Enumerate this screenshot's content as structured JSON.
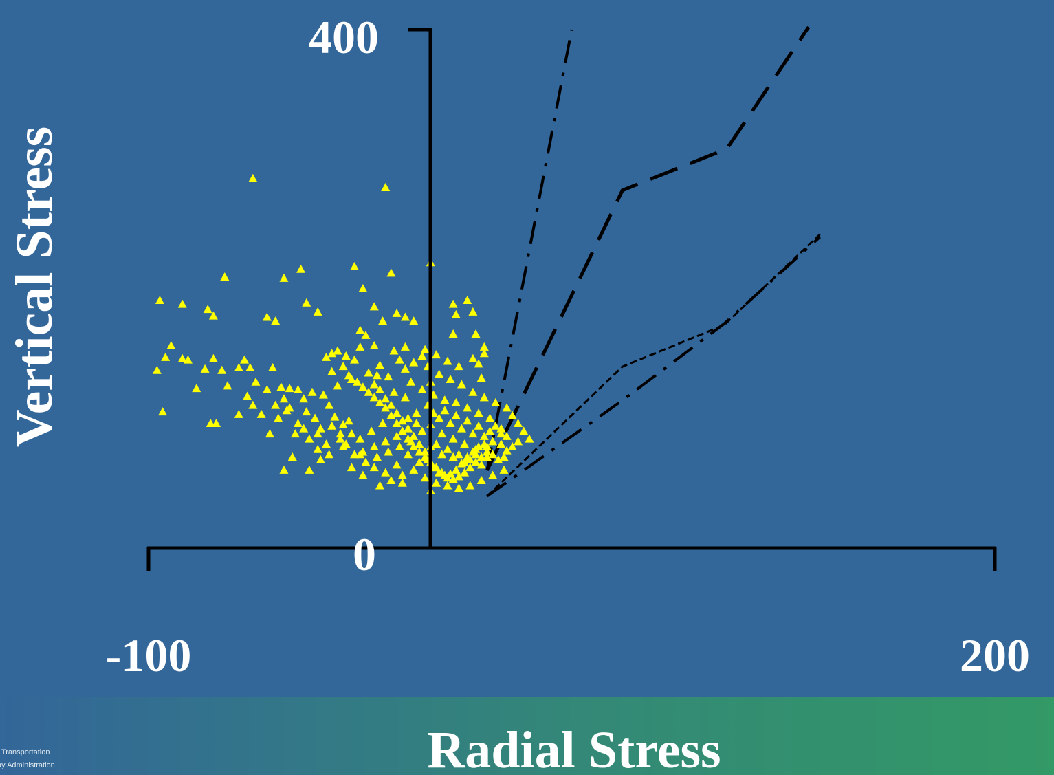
{
  "chart_data": {
    "type": "scatter",
    "xlabel": "Radial Stress",
    "ylabel": "Vertical Stress",
    "xlim": [
      -100,
      200
    ],
    "ylim": [
      0,
      400
    ],
    "x_tick_labels": [
      "-100",
      "200"
    ],
    "y_tick_labels": [
      "0",
      "400"
    ],
    "grid": false,
    "legend": "none",
    "marker": "triangle",
    "colors": {
      "background": "#336699",
      "points": "#ffff00",
      "lines": "#000000",
      "text": "#ffffff"
    },
    "series": [
      {
        "type": "line",
        "style": "dash-dot",
        "x": [
          20,
          50
        ],
        "y": [
          60,
          400
        ]
      },
      {
        "type": "line",
        "style": "long-dash",
        "x": [
          20,
          68,
          105,
          134
        ],
        "y": [
          60,
          276,
          308,
          402
        ]
      },
      {
        "type": "line",
        "style": "dash-dot",
        "x": [
          20,
          68,
          104,
          138
        ],
        "y": [
          40,
          114,
          173,
          240
        ]
      },
      {
        "type": "line",
        "style": "short-dash",
        "x": [
          20,
          68,
          104,
          138
        ],
        "y": [
          40,
          140,
          172,
          242
        ]
      },
      {
        "type": "scatter",
        "style": "triangle-markers",
        "points": [
          [
            -63,
            285
          ],
          [
            -16,
            278
          ],
          [
            -46,
            215
          ],
          [
            -73,
            209
          ],
          [
            -52,
            208
          ],
          [
            -27,
            217
          ],
          [
            -24,
            200
          ],
          [
            -14,
            212
          ],
          [
            0,
            220
          ],
          [
            -96,
            191
          ],
          [
            -88,
            188
          ],
          [
            -79,
            184
          ],
          [
            -77,
            179
          ],
          [
            -58,
            178
          ],
          [
            -55,
            175
          ],
          [
            -44,
            189
          ],
          [
            -40,
            182
          ],
          [
            -20,
            186
          ],
          [
            -12,
            181
          ],
          [
            -25,
            168
          ],
          [
            -17,
            175
          ],
          [
            -9,
            178
          ],
          [
            -6,
            175
          ],
          [
            8,
            188
          ],
          [
            9,
            180
          ],
          [
            15,
            182
          ],
          [
            8,
            165
          ],
          [
            13,
            191
          ],
          [
            16,
            165
          ],
          [
            19,
            155
          ],
          [
            -97,
            137
          ],
          [
            -95,
            105
          ],
          [
            -94,
            147
          ],
          [
            -92,
            156
          ],
          [
            -88,
            146
          ],
          [
            -86,
            145
          ],
          [
            -83,
            123
          ],
          [
            -80,
            138
          ],
          [
            -77,
            146
          ],
          [
            -74,
            137
          ],
          [
            -72,
            125
          ],
          [
            -68,
            139
          ],
          [
            -66,
            145
          ],
          [
            -64,
            139
          ],
          [
            -56,
            139
          ],
          [
            -53,
            124
          ],
          [
            -50,
            123
          ],
          [
            -37,
            147
          ],
          [
            -35,
            150
          ],
          [
            -33,
            152
          ],
          [
            -30,
            148
          ],
          [
            -29,
            133
          ],
          [
            -27,
            145
          ],
          [
            -25,
            155
          ],
          [
            -23,
            164
          ],
          [
            -20,
            156
          ],
          [
            -18,
            141
          ],
          [
            -13,
            152
          ],
          [
            -11,
            145
          ],
          [
            -9,
            155
          ],
          [
            -6,
            143
          ],
          [
            -3,
            148
          ],
          [
            -2,
            153
          ],
          [
            0,
            128
          ],
          [
            2,
            149
          ],
          [
            6,
            144
          ],
          [
            10,
            140
          ],
          [
            15,
            146
          ],
          [
            17,
            142
          ],
          [
            18,
            131
          ],
          [
            19,
            150
          ],
          [
            -54,
            100
          ],
          [
            -68,
            103
          ],
          [
            -76,
            96
          ],
          [
            -78,
            96
          ],
          [
            -57,
            88
          ],
          [
            -60,
            103
          ],
          [
            -65,
            117
          ],
          [
            -63,
            110
          ],
          [
            -44,
            105
          ],
          [
            -40,
            88
          ],
          [
            -42,
            120
          ],
          [
            -48,
            88
          ],
          [
            -50,
            108
          ],
          [
            -55,
            110
          ],
          [
            -52,
            115
          ],
          [
            -47,
            122
          ],
          [
            -45,
            115
          ],
          [
            -38,
            118
          ],
          [
            -36,
            110
          ],
          [
            -34,
            101
          ],
          [
            -31,
            95
          ],
          [
            -32,
            88
          ],
          [
            -30,
            80
          ],
          [
            -25,
            72
          ],
          [
            -33,
            125
          ],
          [
            -28,
            130
          ],
          [
            -22,
            135
          ],
          [
            -20,
            126
          ],
          [
            -18,
            122
          ],
          [
            -16,
            115
          ],
          [
            -14,
            110
          ],
          [
            -12,
            104
          ],
          [
            -10,
            98
          ],
          [
            -8,
            92
          ],
          [
            -6,
            86
          ],
          [
            -4,
            80
          ],
          [
            -2,
            74
          ],
          [
            -1,
            68
          ],
          [
            1,
            62
          ],
          [
            3,
            58
          ],
          [
            5,
            56
          ],
          [
            7,
            57
          ],
          [
            9,
            60
          ],
          [
            11,
            65
          ],
          [
            13,
            70
          ],
          [
            15,
            74
          ],
          [
            17,
            78
          ],
          [
            19,
            80
          ],
          [
            22,
            82
          ],
          [
            25,
            80
          ],
          [
            27,
            75
          ],
          [
            26,
            70
          ],
          [
            24,
            68
          ],
          [
            22,
            72
          ],
          [
            20,
            74
          ],
          [
            18,
            70
          ],
          [
            16,
            66
          ],
          [
            14,
            62
          ],
          [
            12,
            58
          ],
          [
            10,
            55
          ],
          [
            8,
            53
          ],
          [
            6,
            54
          ],
          [
            4,
            58
          ],
          [
            2,
            62
          ],
          [
            0,
            66
          ],
          [
            -2,
            70
          ],
          [
            -4,
            74
          ],
          [
            -6,
            78
          ],
          [
            -8,
            84
          ],
          [
            -10,
            90
          ],
          [
            -12,
            96
          ],
          [
            -14,
            102
          ],
          [
            -16,
            108
          ],
          [
            -18,
            112
          ],
          [
            -20,
            116
          ],
          [
            -22,
            120
          ],
          [
            -24,
            124
          ],
          [
            -26,
            128
          ],
          [
            -15,
            132
          ],
          [
            -7,
            128
          ],
          [
            -3,
            122
          ],
          [
            1,
            118
          ],
          [
            5,
            114
          ],
          [
            9,
            112
          ],
          [
            13,
            108
          ],
          [
            17,
            104
          ],
          [
            21,
            100
          ],
          [
            23,
            94
          ],
          [
            25,
            88
          ],
          [
            3,
            100
          ],
          [
            7,
            96
          ],
          [
            11,
            92
          ],
          [
            15,
            88
          ],
          [
            19,
            86
          ],
          [
            -1,
            110
          ],
          [
            -5,
            104
          ],
          [
            -9,
            116
          ],
          [
            -13,
            120
          ],
          [
            -17,
            96
          ],
          [
            -21,
            90
          ],
          [
            -25,
            84
          ],
          [
            -29,
            98
          ],
          [
            -35,
            94
          ],
          [
            -41,
            100
          ],
          [
            -45,
            92
          ],
          [
            2,
            80
          ],
          [
            6,
            76
          ],
          [
            10,
            72
          ],
          [
            14,
            68
          ],
          [
            18,
            64
          ],
          [
            4,
            88
          ],
          [
            8,
            84
          ],
          [
            12,
            80
          ],
          [
            16,
            76
          ],
          [
            20,
            70
          ],
          [
            0,
            95
          ],
          [
            -3,
            90
          ],
          [
            -7,
            82
          ],
          [
            -11,
            78
          ],
          [
            -15,
            74
          ],
          [
            -19,
            70
          ],
          [
            -23,
            66
          ],
          [
            -27,
            72
          ],
          [
            -31,
            78
          ],
          [
            -37,
            80
          ],
          [
            -39,
            92
          ],
          [
            -43,
            84
          ],
          [
            -47,
            96
          ],
          [
            -51,
            106
          ],
          [
            -58,
            122
          ],
          [
            -62,
            128
          ],
          [
            -35,
            136
          ],
          [
            -31,
            140
          ],
          [
            -19,
            133
          ],
          [
            -9,
            138
          ],
          [
            -1,
            140
          ],
          [
            3,
            134
          ],
          [
            7,
            130
          ],
          [
            11,
            126
          ],
          [
            15,
            120
          ],
          [
            19,
            116
          ],
          [
            23,
            112
          ],
          [
            27,
            108
          ],
          [
            29,
            102
          ],
          [
            31,
            96
          ],
          [
            33,
            90
          ],
          [
            35,
            84
          ],
          [
            31,
            82
          ],
          [
            29,
            78
          ],
          [
            27,
            86
          ],
          [
            25,
            92
          ],
          [
            21,
            90
          ],
          [
            17,
            94
          ],
          [
            13,
            98
          ],
          [
            9,
            102
          ],
          [
            5,
            106
          ],
          [
            1,
            104
          ],
          [
            -5,
            96
          ],
          [
            -8,
            100
          ],
          [
            -12,
            86
          ],
          [
            -16,
            82
          ],
          [
            -20,
            78
          ],
          [
            -24,
            74
          ],
          [
            -28,
            88
          ],
          [
            -32,
            84
          ],
          [
            -36,
            72
          ],
          [
            -40,
            76
          ],
          [
            8,
            70
          ],
          [
            12,
            66
          ],
          [
            16,
            72
          ],
          [
            20,
            78
          ],
          [
            4,
            72
          ],
          [
            0,
            78
          ],
          [
            -4,
            66
          ],
          [
            -8,
            72
          ],
          [
            -12,
            64
          ],
          [
            -16,
            58
          ],
          [
            -20,
            62
          ],
          [
            -6,
            60
          ],
          [
            -10,
            56
          ],
          [
            -14,
            52
          ],
          [
            -2,
            54
          ],
          [
            2,
            50
          ],
          [
            6,
            48
          ],
          [
            10,
            46
          ],
          [
            14,
            48
          ],
          [
            18,
            52
          ],
          [
            22,
            56
          ],
          [
            26,
            60
          ],
          [
            -39,
            68
          ],
          [
            -43,
            60
          ],
          [
            -49,
            70
          ],
          [
            -52,
            60
          ],
          [
            -24,
            56
          ],
          [
            -28,
            62
          ],
          [
            -18,
            48
          ],
          [
            -10,
            50
          ],
          [
            0,
            44
          ]
        ]
      }
    ]
  }
}
